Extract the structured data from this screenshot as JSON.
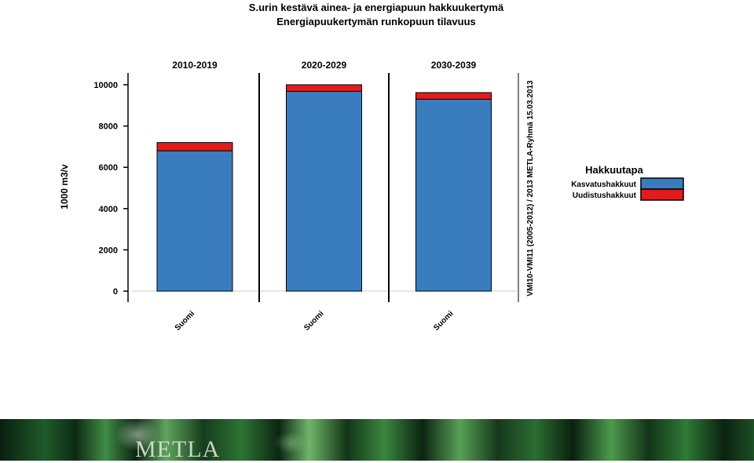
{
  "chart_data": {
    "type": "bar",
    "title": "S.urin kestävä ainea- ja energiapuun hakkuukertymä",
    "subtitle": "Energiapuukertymän runkopuun tilavuus",
    "ylabel": "1000 m3/v",
    "ylim": [
      0,
      10000
    ],
    "yticks": [
      0,
      2000,
      4000,
      6000,
      8000,
      10000
    ],
    "panels": [
      {
        "label": "2010-2019",
        "categories": [
          "Suomi"
        ],
        "stacks": [
          {
            "Kasvatushakkuut": 6800,
            "Uudistushakkuut": 400
          }
        ]
      },
      {
        "label": "2020-2029",
        "categories": [
          "Suomi"
        ],
        "stacks": [
          {
            "Kasvatushakkuut": 9680,
            "Uudistushakkuut": 320
          }
        ]
      },
      {
        "label": "2030-2039",
        "categories": [
          "Suomi"
        ],
        "stacks": [
          {
            "Kasvatushakkuut": 9300,
            "Uudistushakkuut": 320
          }
        ]
      }
    ],
    "series": [
      {
        "name": "Kasvatushakkuut",
        "color": "#3a7dbf"
      },
      {
        "name": "Uudistushakkuut",
        "color": "#e21c1c"
      }
    ],
    "legend": {
      "title": "Hakkuutapa",
      "placement": "right"
    },
    "side_note": "VMI10-VMI11 (2005-2012) / 2013 METLA-Ryhmä 15.03.2013",
    "grid": false
  },
  "footer": {
    "logo_text": "METLA"
  }
}
